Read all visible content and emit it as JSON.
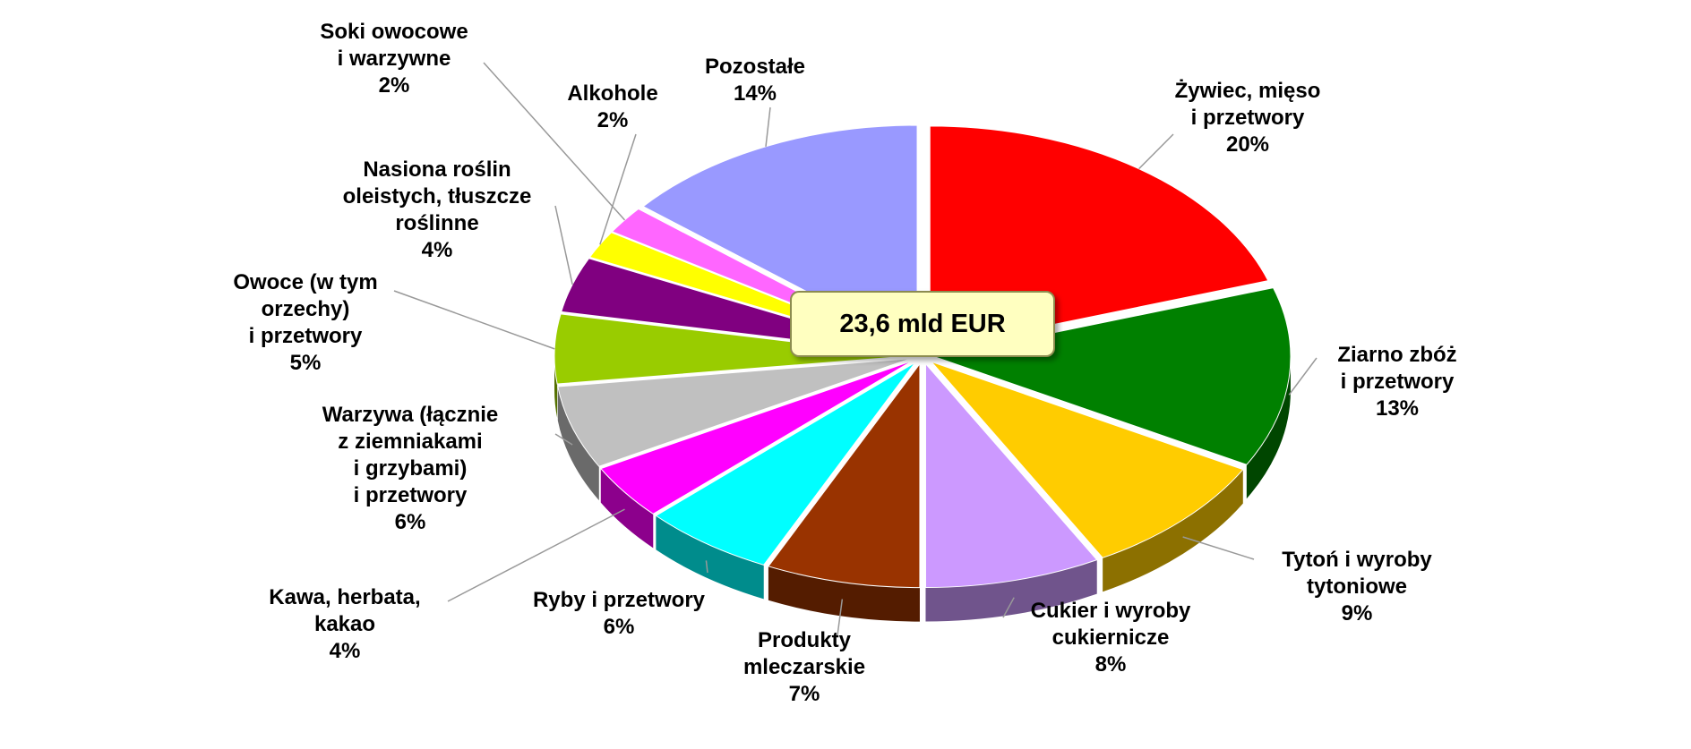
{
  "chart_data": {
    "type": "pie",
    "annotation": "23,6 mld EUR",
    "categories": [
      "Żywiec, mięso\ni przetwory",
      "Ziarno zbóż\ni przetwory",
      "Tytoń i wyroby\ntytoniowe",
      "Cukier i wyroby\ncukiernicze",
      "Produkty\nmleczarskie",
      "Ryby i przetwory",
      "Kawa, herbata,\nkakao",
      "Warzywa (łącznie\nz ziemniakami\ni grzybami)\ni przetwory",
      "Owoce (w tym\norzechy)\ni przetwory",
      "Nasiona roślin\noleistych, tłuszcze\nroślinne",
      "Alkohole",
      "Soki owocowe\ni warzywne",
      "Pozostałe"
    ],
    "values": [
      20,
      13,
      9,
      8,
      7,
      6,
      4,
      6,
      5,
      4,
      2,
      2,
      14
    ],
    "value_labels": [
      "20%",
      "13%",
      "9%",
      "8%",
      "7%",
      "6%",
      "4%",
      "6%",
      "5%",
      "4%",
      "2%",
      "2%",
      "14%"
    ],
    "colors": [
      "#ff0000",
      "#008000",
      "#ffcc00",
      "#cc99ff",
      "#993300",
      "#00ffff",
      "#ff00ff",
      "#c0c0c0",
      "#99cc00",
      "#800080",
      "#ffff00",
      "#ff66ff",
      "#9999ff"
    ]
  }
}
